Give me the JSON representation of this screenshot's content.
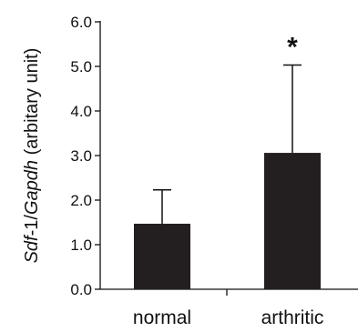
{
  "chart_data": {
    "type": "bar",
    "categories": [
      "normal",
      "arthritic"
    ],
    "values": [
      1.47,
      3.06
    ],
    "error": [
      0.76,
      1.97
    ],
    "ylim": [
      0,
      6
    ],
    "yticks": [
      "0.0",
      "1.0",
      "2.0",
      "3.0",
      "4.0",
      "5.0",
      "6.0"
    ],
    "ylabel_parts": [
      {
        "text": "Sdf",
        "italic": true
      },
      {
        "text": "-1/",
        "italic": false
      },
      {
        "text": "Gapdh",
        "italic": true
      },
      {
        "text": " (arbitary unit)",
        "italic": false
      }
    ],
    "annotations": [
      "",
      "*"
    ],
    "bar_color": "#231f20",
    "grid": false,
    "legend": "none"
  }
}
